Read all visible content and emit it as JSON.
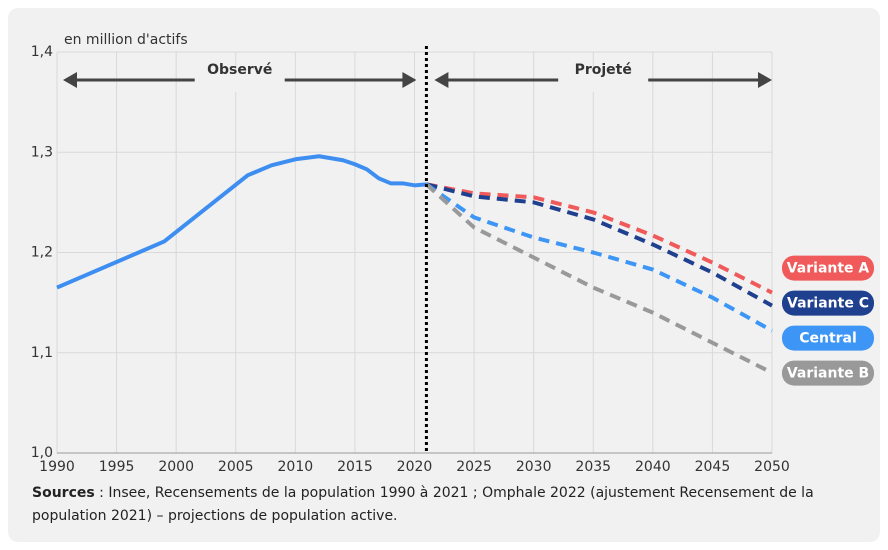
{
  "chart_data": {
    "type": "line",
    "ylabel": "en million d'actifs",
    "annotations": {
      "observed": "Observé",
      "projected": "Projeté",
      "divider_x": 2021
    },
    "xlim": [
      1990,
      2050
    ],
    "xticks": [
      1990,
      1995,
      2000,
      2005,
      2010,
      2015,
      2020,
      2025,
      2030,
      2035,
      2040,
      2045,
      2050
    ],
    "ylim": [
      1.0,
      1.4
    ],
    "yticks": [
      {
        "value": 1.0,
        "label": "1,0"
      },
      {
        "value": 1.1,
        "label": "1,1"
      },
      {
        "value": 1.2,
        "label": "1,2"
      },
      {
        "value": 1.3,
        "label": "1,3"
      },
      {
        "value": 1.4,
        "label": "1,4"
      }
    ],
    "grid": true,
    "series": [
      {
        "color": "#3d8ef0",
        "dashed": false,
        "x": [
          1990,
          1999,
          2006,
          2008,
          2010,
          2012,
          2014,
          2015,
          2016,
          2017,
          2018,
          2019,
          2020,
          2021
        ],
        "values": [
          1.165,
          1.211,
          1.277,
          1.287,
          1.293,
          1.296,
          1.292,
          1.288,
          1.283,
          1.274,
          1.269,
          1.269,
          1.267,
          1.268
        ]
      },
      {
        "name": "Variante A",
        "color": "#f05a5a",
        "dashed": true,
        "x": [
          2021,
          2025,
          2030,
          2035,
          2040,
          2045,
          2050
        ],
        "values": [
          1.268,
          1.259,
          1.255,
          1.24,
          1.217,
          1.19,
          1.16
        ]
      },
      {
        "name": "Variante C",
        "color": "#1f3f8f",
        "dashed": true,
        "x": [
          2021,
          2025,
          2030,
          2035,
          2040,
          2045,
          2050
        ],
        "values": [
          1.268,
          1.256,
          1.25,
          1.233,
          1.208,
          1.18,
          1.147
        ]
      },
      {
        "name": "Central",
        "color": "#3d96f5",
        "dashed": true,
        "x": [
          2021,
          2025,
          2030,
          2035,
          2040,
          2045,
          2050
        ],
        "values": [
          1.268,
          1.235,
          1.215,
          1.2,
          1.183,
          1.155,
          1.122
        ]
      },
      {
        "name": "Variante B",
        "color": "#999999",
        "dashed": true,
        "x": [
          2021,
          2025,
          2030,
          2035,
          2040,
          2045,
          2050
        ],
        "values": [
          1.268,
          1.225,
          1.195,
          1.165,
          1.14,
          1.11,
          1.08
        ]
      }
    ],
    "source_label": "Sources",
    "source_text": ": Insee, Recensements de la population 1990 à 2021 ; Omphale 2022 (ajustement Recensement de la population 2021) – projections de population active."
  }
}
